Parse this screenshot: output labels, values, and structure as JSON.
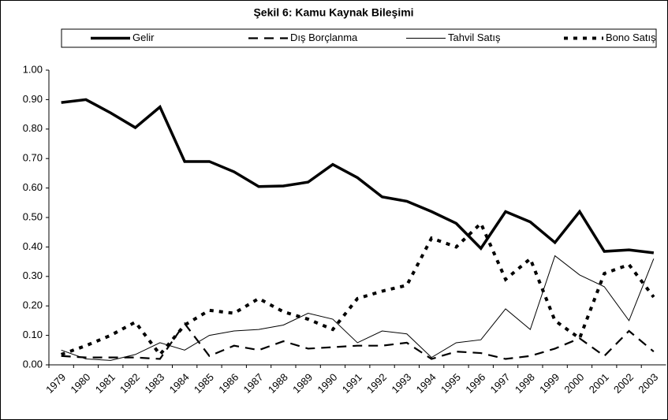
{
  "chart_data": {
    "type": "line",
    "title": "Şekil 6: Kamu Kaynak Bileşimi",
    "categories": [
      "1979",
      "1980",
      "1981",
      "1982",
      "1983",
      "1984",
      "1985",
      "1986",
      "1987",
      "1988",
      "1989",
      "1990",
      "1991",
      "1992",
      "1993",
      "1994",
      "1995",
      "1996",
      "1997",
      "1998",
      "1999",
      "2000",
      "2001",
      "2002",
      "2003"
    ],
    "series": [
      {
        "name": "Gelir",
        "color": "#000000",
        "values": [
          0.89,
          0.9,
          0.855,
          0.805,
          0.875,
          0.69,
          0.69,
          0.655,
          0.605,
          0.607,
          0.62,
          0.68,
          0.635,
          0.57,
          0.555,
          0.52,
          0.48,
          0.395,
          0.52,
          0.485,
          0.415,
          0.52,
          0.385,
          0.39,
          0.38
        ]
      },
      {
        "name": "Dış Borçlanma",
        "color": "#000000",
        "values": [
          0.03,
          0.025,
          0.025,
          0.025,
          0.02,
          0.14,
          0.03,
          0.065,
          0.05,
          0.08,
          0.055,
          0.06,
          0.065,
          0.065,
          0.075,
          0.02,
          0.045,
          0.04,
          0.02,
          0.03,
          0.055,
          0.09,
          0.03,
          0.115,
          0.045
        ]
      },
      {
        "name": "Tahvil Satış",
        "color": "#000000",
        "values": [
          0.05,
          0.02,
          0.015,
          0.035,
          0.075,
          0.05,
          0.1,
          0.115,
          0.12,
          0.135,
          0.175,
          0.155,
          0.075,
          0.115,
          0.105,
          0.025,
          0.075,
          0.085,
          0.19,
          0.12,
          0.37,
          0.305,
          0.265,
          0.15,
          0.36
        ]
      },
      {
        "name": "Bono Satış",
        "color": "#000000",
        "values": [
          0.035,
          0.065,
          0.1,
          0.145,
          0.035,
          0.135,
          0.185,
          0.175,
          0.225,
          0.18,
          0.155,
          0.12,
          0.225,
          0.25,
          0.27,
          0.43,
          0.4,
          0.48,
          0.29,
          0.36,
          0.15,
          0.09,
          0.31,
          0.34,
          0.23
        ]
      }
    ],
    "ylim": [
      0,
      1
    ],
    "yticks": [
      {
        "value": 0,
        "label": "0.00"
      },
      {
        "value": 0.1,
        "label": "0.10"
      },
      {
        "value": 0.2,
        "label": "0.20"
      },
      {
        "value": 0.3,
        "label": "0.30"
      },
      {
        "value": 0.4,
        "label": "0.40"
      },
      {
        "value": 0.5,
        "label": "0.50"
      },
      {
        "value": 0.6,
        "label": "0.60"
      },
      {
        "value": 0.7,
        "label": "0.70"
      },
      {
        "value": 0.8,
        "label": "0.80"
      },
      {
        "value": 0.9,
        "label": "0.90"
      },
      {
        "value": 1,
        "label": "1.00"
      }
    ],
    "legend": "top",
    "grid": false
  }
}
